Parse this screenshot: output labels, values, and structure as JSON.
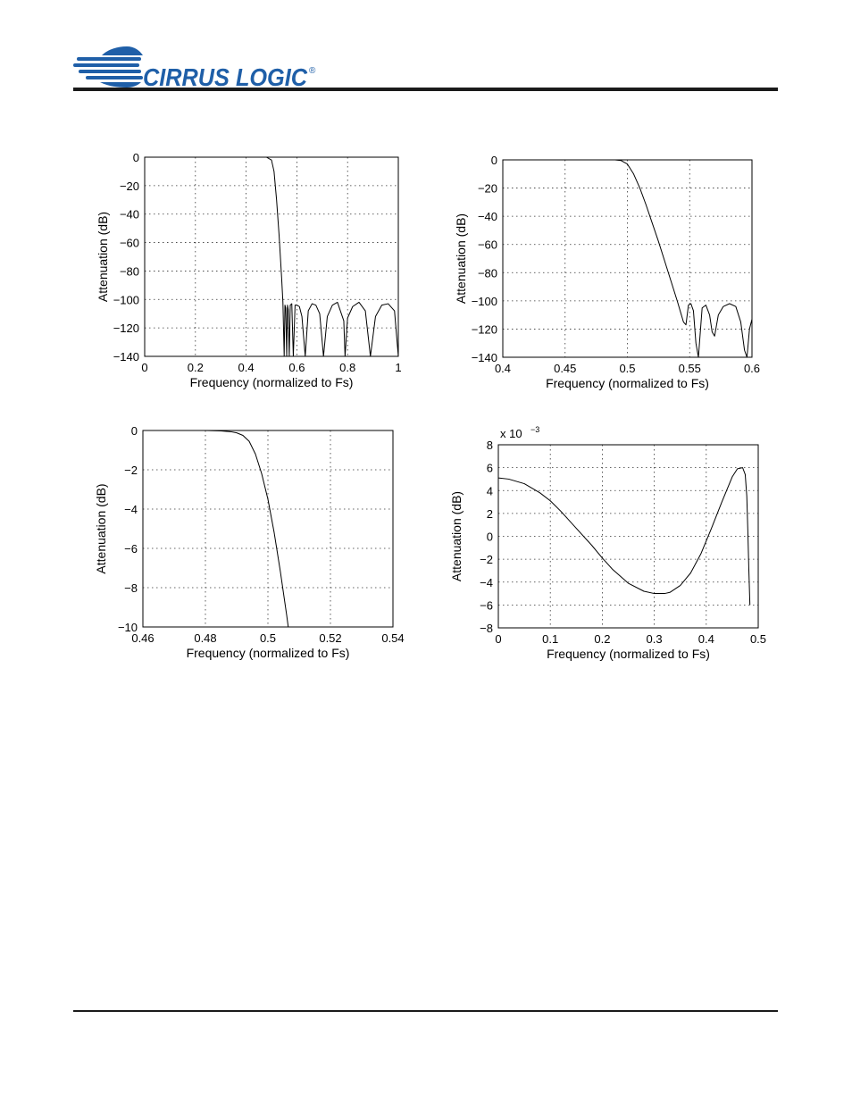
{
  "header": {
    "brand_text": "CIRRUS LOGIC",
    "registered_mark": "®",
    "brand_color": "#1f5fa8"
  },
  "chart_data": [
    {
      "type": "line",
      "xlabel": "Frequency (normalized to Fs)",
      "ylabel": "Attenuation (dB)",
      "xlim": [
        0,
        1
      ],
      "ylim": [
        -140,
        0
      ],
      "xticks": [
        0,
        0.2,
        0.4,
        0.6,
        0.8,
        1
      ],
      "xtick_labels": [
        "0",
        "0.2",
        "0.4",
        "0.6",
        "0.8",
        "1"
      ],
      "yticks": [
        0,
        -20,
        -40,
        -60,
        -80,
        -100,
        -120,
        -140
      ],
      "ytick_labels": [
        "0",
        "−20",
        "−40",
        "−60",
        "−80",
        "−100",
        "−120",
        "−140"
      ],
      "grid": true,
      "series": [
        {
          "x": [
            0,
            0.1,
            0.2,
            0.3,
            0.4,
            0.48,
            0.5,
            0.51,
            0.52,
            0.53,
            0.54,
            0.545,
            0.55,
            0.553,
            0.556,
            0.56,
            0.563,
            0.566,
            0.57,
            0.574,
            0.58,
            0.586,
            0.593,
            0.6,
            0.61,
            0.62,
            0.633,
            0.645,
            0.66,
            0.675,
            0.69,
            0.705,
            0.72,
            0.74,
            0.76,
            0.785,
            0.79,
            0.8,
            0.82,
            0.845,
            0.87,
            0.89,
            0.91,
            0.935,
            0.96,
            0.985,
            1.0
          ],
          "y": [
            0,
            0,
            0,
            0,
            0,
            0,
            -2,
            -10,
            -30,
            -55,
            -85,
            -102,
            -140,
            -104,
            -106,
            -140,
            -104,
            -107,
            -140,
            -104,
            -103,
            -140,
            -104,
            -104,
            -105,
            -112,
            -140,
            -108,
            -103,
            -104,
            -110,
            -140,
            -112,
            -104,
            -102,
            -115,
            -140,
            -113,
            -105,
            -102,
            -108,
            -140,
            -112,
            -104,
            -103,
            -108,
            -140
          ]
        }
      ]
    },
    {
      "type": "line",
      "xlabel": "Frequency (normalized to Fs)",
      "ylabel": "Attenuation (dB)",
      "xlim": [
        0.4,
        0.6
      ],
      "ylim": [
        -140,
        0
      ],
      "xticks": [
        0.4,
        0.45,
        0.5,
        0.55,
        0.6
      ],
      "xtick_labels": [
        "0.4",
        "0.45",
        "0.5",
        "0.55",
        "0.6"
      ],
      "yticks": [
        0,
        -20,
        -40,
        -60,
        -80,
        -100,
        -120,
        -140
      ],
      "ytick_labels": [
        "0",
        "−20",
        "−40",
        "−60",
        "−80",
        "−100",
        "−120",
        "−140"
      ],
      "grid": true,
      "series": [
        {
          "x": [
            0.4,
            0.45,
            0.48,
            0.49,
            0.495,
            0.5,
            0.505,
            0.51,
            0.515,
            0.52,
            0.525,
            0.53,
            0.535,
            0.54,
            0.545,
            0.547,
            0.549,
            0.551,
            0.553,
            0.555,
            0.557,
            0.56,
            0.563,
            0.566,
            0.568,
            0.57,
            0.573,
            0.577,
            0.582,
            0.587,
            0.591,
            0.594,
            0.596,
            0.598,
            0.6
          ],
          "y": [
            0,
            0,
            0,
            0,
            -0.5,
            -3,
            -10,
            -20,
            -32,
            -45,
            -58,
            -72,
            -86,
            -100,
            -115,
            -117,
            -103,
            -102,
            -107,
            -130,
            -140,
            -105,
            -103,
            -110,
            -122,
            -125,
            -110,
            -104,
            -102,
            -104,
            -115,
            -135,
            -140,
            -120,
            -113
          ]
        }
      ]
    },
    {
      "type": "line",
      "xlabel": "Frequency (normalized to Fs)",
      "ylabel": "Attenuation (dB)",
      "xlim": [
        0.46,
        0.54
      ],
      "ylim": [
        -10,
        0
      ],
      "xticks": [
        0.46,
        0.48,
        0.5,
        0.52,
        0.54
      ],
      "xtick_labels": [
        "0.46",
        "0.48",
        "0.5",
        "0.52",
        "0.54"
      ],
      "yticks": [
        0,
        -2,
        -4,
        -6,
        -8,
        -10
      ],
      "ytick_labels": [
        "0",
        "−2",
        "−4",
        "−6",
        "−8",
        "−10"
      ],
      "grid": true,
      "series": [
        {
          "x": [
            0.46,
            0.48,
            0.485,
            0.488,
            0.49,
            0.492,
            0.494,
            0.496,
            0.498,
            0.5,
            0.502,
            0.504,
            0.506,
            0.5065
          ],
          "y": [
            0,
            0,
            -0.02,
            -0.06,
            -0.12,
            -0.25,
            -0.55,
            -1.2,
            -2.2,
            -3.5,
            -5.2,
            -7.2,
            -9.4,
            -10
          ]
        }
      ]
    },
    {
      "type": "line",
      "xlabel": "Frequency (normalized to Fs)",
      "ylabel": "Attenuation (dB)",
      "xlim": [
        0,
        0.5
      ],
      "ylim": [
        -8,
        8
      ],
      "xticks": [
        0,
        0.1,
        0.2,
        0.3,
        0.4,
        0.5
      ],
      "xtick_labels": [
        "0",
        "0.1",
        "0.2",
        "0.3",
        "0.4",
        "0.5"
      ],
      "yticks": [
        8,
        6,
        4,
        2,
        0,
        -2,
        -4,
        -6,
        -8
      ],
      "ytick_labels": [
        "8",
        "6",
        "4",
        "2",
        "0",
        "−2",
        "−4",
        "−6",
        "−8"
      ],
      "scale_label": "x 10",
      "scale_exponent": "−3",
      "grid": true,
      "series": [
        {
          "x": [
            0,
            0.02,
            0.05,
            0.08,
            0.1,
            0.12,
            0.15,
            0.18,
            0.2,
            0.22,
            0.25,
            0.28,
            0.3,
            0.32,
            0.33,
            0.35,
            0.37,
            0.39,
            0.41,
            0.43,
            0.45,
            0.46,
            0.47,
            0.475,
            0.478,
            0.48,
            0.482,
            0.484
          ],
          "y": [
            5.1,
            5.0,
            4.6,
            3.8,
            3.1,
            2.2,
            0.7,
            -0.8,
            -1.9,
            -2.9,
            -4.1,
            -4.8,
            -5.0,
            -5.0,
            -4.9,
            -4.3,
            -3.2,
            -1.5,
            0.7,
            3.0,
            5.2,
            5.9,
            6.0,
            5.4,
            3.5,
            0.5,
            -3.0,
            -6.0
          ]
        }
      ]
    }
  ]
}
